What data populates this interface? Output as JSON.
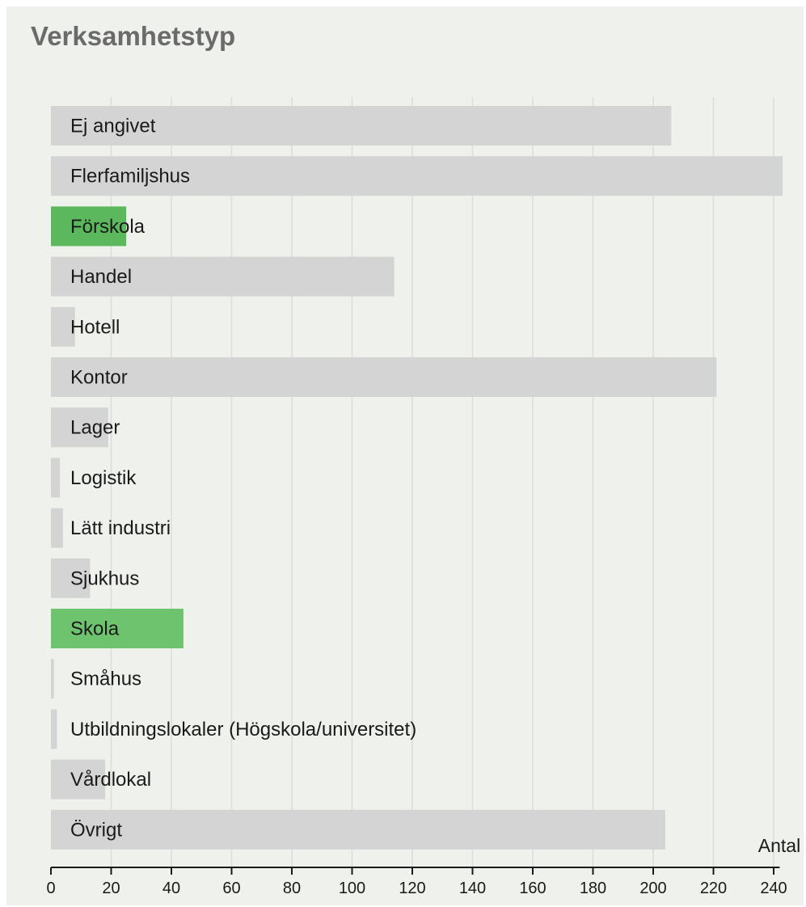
{
  "chart_data": {
    "type": "bar",
    "orientation": "horizontal",
    "title": "Verksamhetstyp",
    "xlabel": "Antal",
    "ylabel": "",
    "xlim": [
      0,
      242
    ],
    "xticks": [
      0,
      20,
      40,
      60,
      80,
      100,
      120,
      140,
      160,
      180,
      200,
      220,
      240
    ],
    "grid": true,
    "categories": [
      "Ej angivet",
      "Flerfamiljshus",
      "Förskola",
      "Handel",
      "Hotell",
      "Kontor",
      "Lager",
      "Logistik",
      "Lätt industri",
      "Sjukhus",
      "Skola",
      "Småhus",
      "Utbildningslokaler (Högskola/universitet)",
      "Vårdlokal",
      "Övrigt"
    ],
    "values": [
      206,
      243,
      25,
      114,
      8,
      221,
      19,
      3,
      4,
      13,
      44,
      1,
      2,
      18,
      204
    ],
    "colors": {
      "default": "#d4d4d4",
      "highlighted": {
        "Förskola": "#5cb85c",
        "Skola": "#6ec46e"
      }
    }
  }
}
